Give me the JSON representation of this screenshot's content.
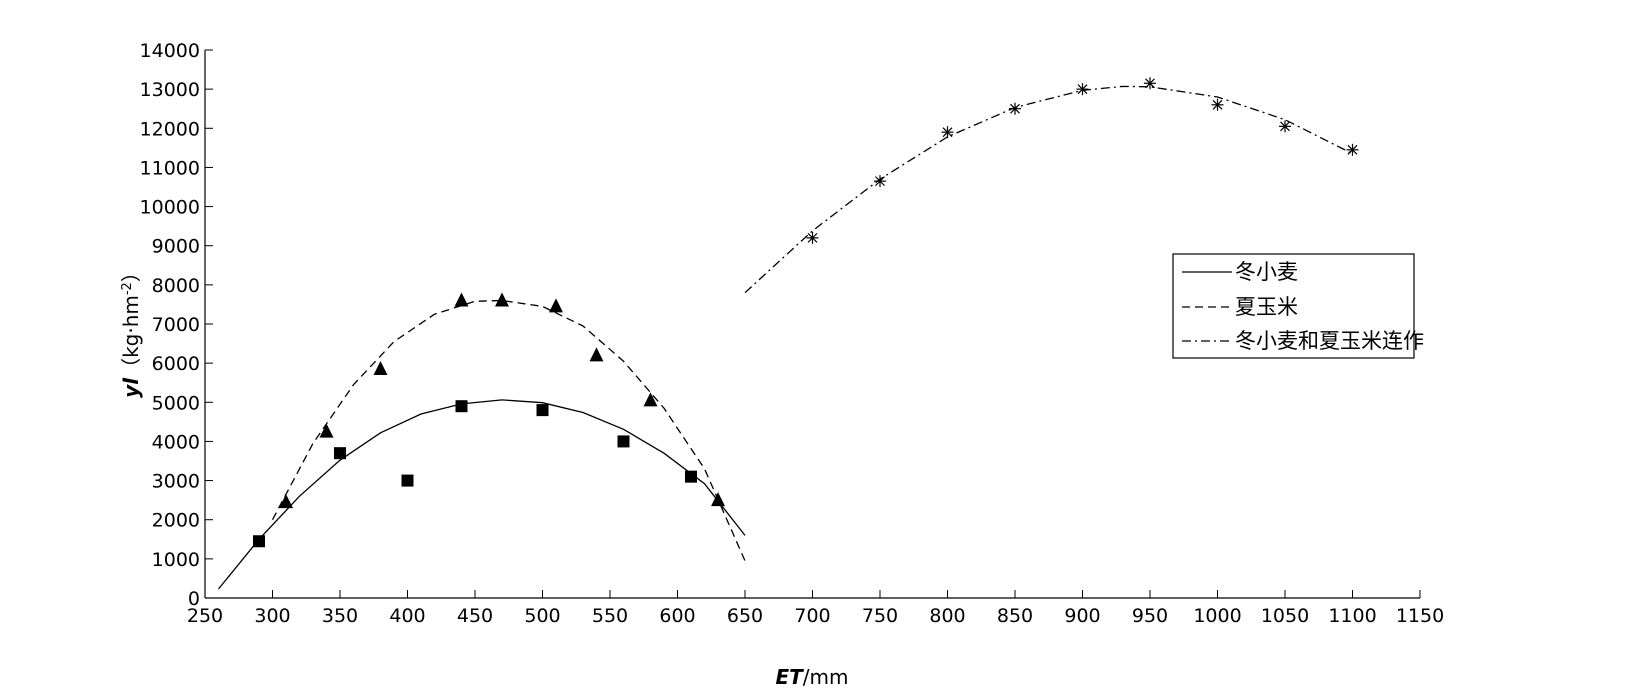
{
  "chart_data": {
    "type": "scatter",
    "xlabel": {
      "symbol": "ET",
      "unit": "/mm"
    },
    "ylabel": {
      "symbol": "yl",
      "unit": "（kg·hm",
      "exp": "-2",
      "close": "）"
    },
    "xlim": [
      250,
      1150
    ],
    "ylim": [
      0,
      14000
    ],
    "xticks": [
      "250",
      "300",
      "350",
      "400",
      "450",
      "500",
      "550",
      "600",
      "650",
      "700",
      "750",
      "800",
      "850",
      "900",
      "950",
      "1000",
      "1050",
      "1100",
      "1150"
    ],
    "yticks": [
      "0",
      "1000",
      "2000",
      "3000",
      "4000",
      "5000",
      "6000",
      "7000",
      "8000",
      "9000",
      "10000",
      "11000",
      "12000",
      "13000",
      "14000"
    ],
    "legend_position": "right",
    "series": [
      {
        "name": "冬小麦",
        "line_style": "solid",
        "marker": "square",
        "points": [
          [
            290,
            1450
          ],
          [
            350,
            3700
          ],
          [
            400,
            3000
          ],
          [
            440,
            4900
          ],
          [
            500,
            4800
          ],
          [
            560,
            4000
          ],
          [
            610,
            3100
          ]
        ],
        "fit": [
          [
            260,
            230
          ],
          [
            290,
            1500
          ],
          [
            320,
            2600
          ],
          [
            350,
            3520
          ],
          [
            380,
            4220
          ],
          [
            410,
            4700
          ],
          [
            440,
            4960
          ],
          [
            470,
            5060
          ],
          [
            500,
            4990
          ],
          [
            530,
            4740
          ],
          [
            560,
            4310
          ],
          [
            590,
            3700
          ],
          [
            620,
            2920
          ],
          [
            650,
            1600
          ]
        ]
      },
      {
        "name": "夏玉米",
        "line_style": "dashed",
        "marker": "triangle",
        "points": [
          [
            310,
            2450
          ],
          [
            340,
            4250
          ],
          [
            380,
            5850
          ],
          [
            440,
            7600
          ],
          [
            470,
            7600
          ],
          [
            510,
            7450
          ],
          [
            540,
            6200
          ],
          [
            580,
            5050
          ],
          [
            630,
            2500
          ]
        ],
        "fit": [
          [
            300,
            2000
          ],
          [
            330,
            3950
          ],
          [
            360,
            5450
          ],
          [
            390,
            6550
          ],
          [
            420,
            7250
          ],
          [
            450,
            7580
          ],
          [
            470,
            7600
          ],
          [
            500,
            7450
          ],
          [
            530,
            6950
          ],
          [
            560,
            6050
          ],
          [
            590,
            4850
          ],
          [
            620,
            3300
          ],
          [
            650,
            950
          ]
        ]
      },
      {
        "name": "冬小麦和夏玉米连作",
        "line_style": "dashdot",
        "marker": "asterisk",
        "points": [
          [
            700,
            9200
          ],
          [
            750,
            10650
          ],
          [
            800,
            11900
          ],
          [
            850,
            12500
          ],
          [
            900,
            13000
          ],
          [
            950,
            13150
          ],
          [
            1000,
            12600
          ],
          [
            1050,
            12050
          ],
          [
            1100,
            11450
          ]
        ],
        "fit": [
          [
            650,
            7800
          ],
          [
            700,
            9380
          ],
          [
            750,
            10700
          ],
          [
            800,
            11780
          ],
          [
            850,
            12530
          ],
          [
            900,
            12970
          ],
          [
            930,
            13070
          ],
          [
            950,
            13060
          ],
          [
            1000,
            12800
          ],
          [
            1050,
            12220
          ],
          [
            1100,
            11350
          ]
        ]
      }
    ]
  }
}
